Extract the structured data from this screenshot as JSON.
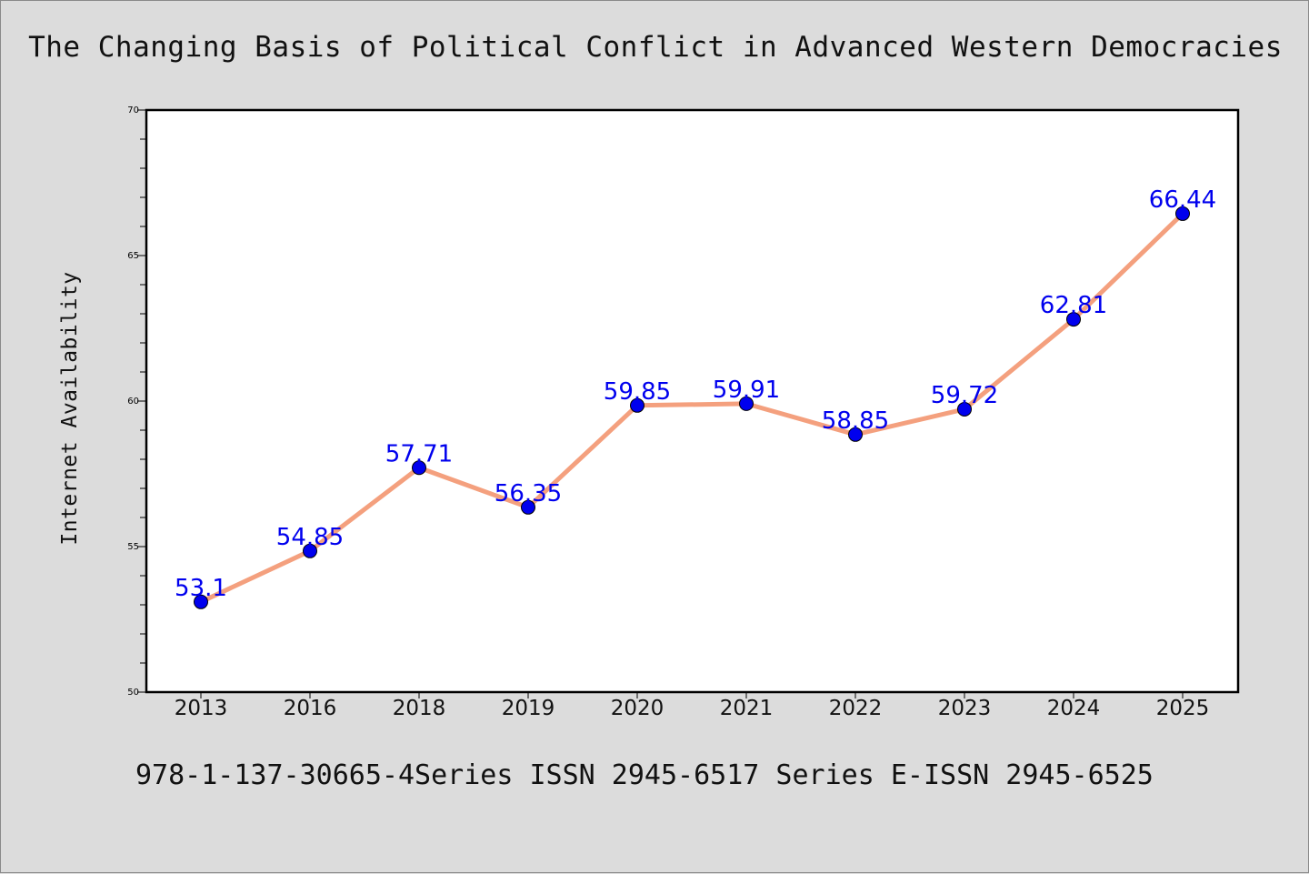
{
  "chart_data": {
    "type": "line",
    "title": "The Changing Basis of Political Conflict in Advanced Western Democracies",
    "xlabel": "",
    "ylabel": "Internet Availability",
    "categories": [
      "2013",
      "2016",
      "2018",
      "2019",
      "2020",
      "2021",
      "2022",
      "2023",
      "2024",
      "2025"
    ],
    "series": [
      {
        "values": [
          53.1,
          54.85,
          57.71,
          56.35,
          59.85,
          59.91,
          58.85,
          59.72,
          62.81,
          66.44
        ],
        "labels": [
          "53.1",
          "54.85",
          "57.71",
          "56.35",
          "59.85",
          "59.91",
          "58.85",
          "59.72",
          "62.81",
          "66.44"
        ]
      }
    ],
    "ylim": [
      50,
      70
    ],
    "yticks": [
      "50",
      "55",
      "60",
      "65",
      "70"
    ],
    "grid": false,
    "legend": "none",
    "colors": {
      "line": "#f4a07e",
      "marker": "#0000ee",
      "marker_edge": "#000000",
      "data_label": "#0000ee",
      "plot_background": "#ffffff",
      "page_background": "#dcdcdc"
    }
  },
  "footer_note": "978-1-137-30665-4Series ISSN 2945-6517 Series E-ISSN 2945-6525"
}
